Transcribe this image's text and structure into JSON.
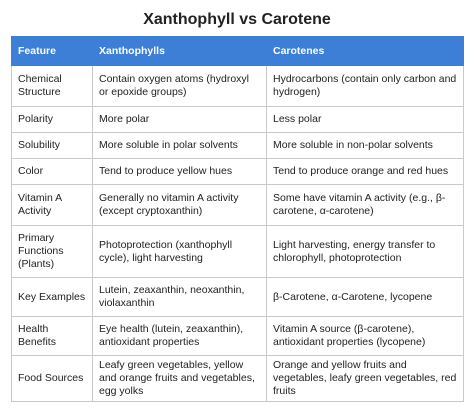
{
  "header": {
    "title": "Xanthophyll vs Carotene"
  },
  "table": {
    "columns": [
      "Feature",
      "Xanthophylls",
      "Carotenes"
    ],
    "rows": [
      [
        "Chemical Structure",
        "Contain oxygen atoms (hydroxyl or epoxide groups)",
        "Hydrocarbons (contain only carbon and hydrogen)"
      ],
      [
        "Polarity",
        "More polar",
        "Less polar"
      ],
      [
        "Solubility",
        "More soluble in polar solvents",
        "More soluble in non-polar solvents"
      ],
      [
        "Color",
        "Tend to produce yellow hues",
        "Tend to produce orange and red hues"
      ],
      [
        "Vitamin A Activity",
        "Generally no vitamin A activity (except cryptoxanthin)",
        "Some have vitamin A activity (e.g., β-carotene, α-carotene)"
      ],
      [
        "Primary Functions (Plants)",
        "Photoprotection (xanthophyll cycle), light harvesting",
        "Light harvesting, energy transfer to chlorophyll, photoprotection"
      ],
      [
        "Key Examples",
        "Lutein, zeaxanthin, neoxanthin, violaxanthin",
        "β-Carotene, α-Carotene, lycopene"
      ],
      [
        "Health Benefits",
        "Eye health (lutein, zeaxanthin), antioxidant properties",
        "Vitamin A source (β-carotene), antioxidant properties (lycopene)"
      ],
      [
        "Food Sources",
        "Leafy green vegetables, yellow and orange fruits and vegetables, egg yolks",
        "Orange and yellow fruits and vegetables, leafy green vegetables, red fruits"
      ]
    ]
  }
}
